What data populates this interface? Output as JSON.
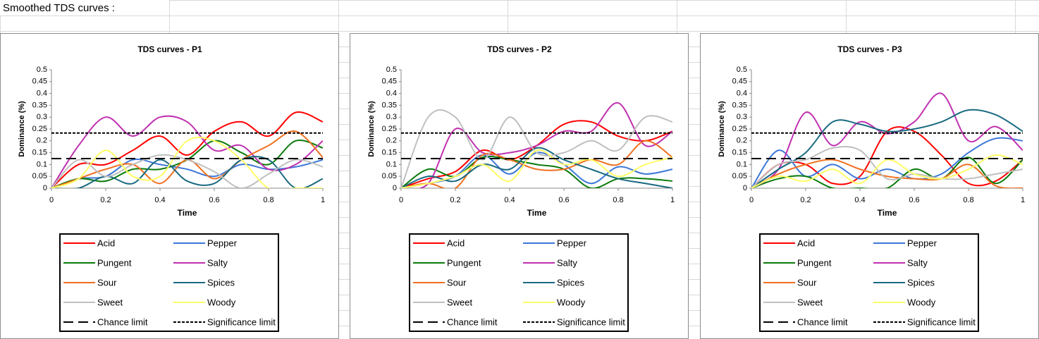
{
  "sheet_title": "Smoothed TDS curves :",
  "chart_data": [
    {
      "type": "line",
      "title": "TDS curves - P1",
      "x_label": "Time",
      "y_label": "Dominance (%)",
      "x": [
        0,
        0.1,
        0.2,
        0.3,
        0.4,
        0.5,
        0.6,
        0.7,
        0.8,
        0.9,
        1
      ],
      "xlim": [
        0,
        1
      ],
      "ylim": [
        0,
        0.5
      ],
      "xticks": [
        0,
        0.2,
        0.4,
        0.6,
        0.8,
        1
      ],
      "yticks": [
        0,
        0.05,
        0.1,
        0.15,
        0.2,
        0.25,
        0.3,
        0.35,
        0.4,
        0.45,
        0.5
      ],
      "series": [
        {
          "name": "Acid",
          "color": "#ff0000",
          "values": [
            0,
            0.1,
            0.1,
            0.16,
            0.22,
            0.14,
            0.24,
            0.28,
            0.22,
            0.32,
            0.28
          ]
        },
        {
          "name": "Pepper",
          "color": "#3c78d8",
          "values": [
            0,
            0.04,
            0.05,
            0.12,
            0.1,
            0.08,
            0.05,
            0.1,
            0.08,
            0.09,
            0.12
          ]
        },
        {
          "name": "Pungent",
          "color": "#0a7a0a",
          "values": [
            0,
            0.04,
            0.03,
            0.08,
            0.08,
            0.12,
            0.2,
            0.15,
            0.1,
            0.2,
            0.17
          ]
        },
        {
          "name": "Salty",
          "color": "#c030b0",
          "values": [
            0,
            0.18,
            0.3,
            0.22,
            0.3,
            0.28,
            0.16,
            0.18,
            0.08,
            0.1,
            0.2
          ]
        },
        {
          "name": "Sour",
          "color": "#f07020",
          "values": [
            0,
            0.04,
            0.08,
            0.1,
            0.02,
            0.12,
            0.04,
            0.12,
            0.18,
            0.24,
            0.13
          ]
        },
        {
          "name": "Spices",
          "color": "#1a6a80",
          "values": [
            0,
            0,
            0.05,
            0.02,
            0.12,
            0.03,
            0.02,
            0.12,
            0.12,
            0,
            0.04
          ]
        },
        {
          "name": "Sweet",
          "color": "#bfbfbf",
          "values": [
            0,
            0.12,
            0.05,
            0.1,
            0.14,
            0.12,
            0.07,
            0,
            0.06,
            0.12,
            0.09
          ]
        },
        {
          "name": "Woody",
          "color": "#ffff66",
          "values": [
            0,
            0.04,
            0.16,
            0.05,
            0.05,
            0.2,
            0.2,
            0.12,
            0,
            0,
            0
          ]
        }
      ],
      "reference_lines": [
        {
          "name": "Chance limit",
          "value": 0.125,
          "dash": "long"
        },
        {
          "name": "Significance limit",
          "value": 0.233,
          "dash": "short"
        }
      ]
    },
    {
      "type": "line",
      "title": "TDS curves - P2",
      "x_label": "Time",
      "y_label": "Dominance (%)",
      "x": [
        0,
        0.1,
        0.2,
        0.3,
        0.4,
        0.5,
        0.6,
        0.7,
        0.8,
        0.9,
        1
      ],
      "xlim": [
        0,
        1
      ],
      "ylim": [
        0,
        0.5
      ],
      "xticks": [
        0,
        0.2,
        0.4,
        0.6,
        0.8,
        1
      ],
      "yticks": [
        0,
        0.05,
        0.1,
        0.15,
        0.2,
        0.25,
        0.3,
        0.35,
        0.4,
        0.45,
        0.5
      ],
      "series": [
        {
          "name": "Acid",
          "color": "#ff0000",
          "values": [
            0,
            0.04,
            0.07,
            0.16,
            0.12,
            0.18,
            0.27,
            0.28,
            0.22,
            0.2,
            0.24
          ]
        },
        {
          "name": "Pepper",
          "color": "#3c78d8",
          "values": [
            0,
            0.02,
            0.05,
            0.14,
            0.06,
            0.15,
            0.1,
            0.02,
            0.09,
            0.06,
            0.08
          ]
        },
        {
          "name": "Pungent",
          "color": "#0a7a0a",
          "values": [
            0,
            0.08,
            0.05,
            0.13,
            0.12,
            0.1,
            0.08,
            0,
            0.04,
            0.04,
            0.03
          ]
        },
        {
          "name": "Salty",
          "color": "#c030b0",
          "values": [
            0,
            0.02,
            0.25,
            0.15,
            0.15,
            0.18,
            0.24,
            0.24,
            0.36,
            0.18,
            0.24
          ]
        },
        {
          "name": "Sour",
          "color": "#f07020",
          "values": [
            0,
            0.02,
            0,
            0.14,
            0.12,
            0.08,
            0.08,
            0.12,
            0.1,
            0.2,
            0.13
          ]
        },
        {
          "name": "Spices",
          "color": "#1a6a80",
          "values": [
            0,
            0.05,
            0.03,
            0.1,
            0.08,
            0.17,
            0.12,
            0.08,
            0.04,
            0.02,
            0
          ]
        },
        {
          "name": "Sweet",
          "color": "#bfbfbf",
          "values": [
            0,
            0.3,
            0.3,
            0.12,
            0.3,
            0.15,
            0.15,
            0.2,
            0.16,
            0.3,
            0.28
          ]
        },
        {
          "name": "Woody",
          "color": "#ffff66",
          "values": [
            0,
            0.02,
            0.05,
            0.1,
            0.03,
            0.16,
            0.1,
            0.12,
            0.05,
            0.1,
            0.13
          ]
        }
      ],
      "reference_lines": [
        {
          "name": "Chance limit",
          "value": 0.125,
          "dash": "long"
        },
        {
          "name": "Significance limit",
          "value": 0.233,
          "dash": "short"
        }
      ]
    },
    {
      "type": "line",
      "title": "TDS curves - P3",
      "x_label": "Time",
      "y_label": "Dominance (%)",
      "x": [
        0,
        0.1,
        0.2,
        0.3,
        0.4,
        0.5,
        0.6,
        0.7,
        0.8,
        0.9,
        1
      ],
      "xlim": [
        0,
        1
      ],
      "ylim": [
        0,
        0.5
      ],
      "xticks": [
        0,
        0.2,
        0.4,
        0.6,
        0.8,
        1
      ],
      "yticks": [
        0,
        0.05,
        0.1,
        0.15,
        0.2,
        0.25,
        0.3,
        0.35,
        0.4,
        0.45,
        0.5
      ],
      "series": [
        {
          "name": "Acid",
          "color": "#ff0000",
          "values": [
            0,
            0.1,
            0.1,
            0.02,
            0.05,
            0.24,
            0.24,
            0.14,
            0.02,
            0.03,
            0.12
          ]
        },
        {
          "name": "Pepper",
          "color": "#3c78d8",
          "values": [
            0,
            0.16,
            0.05,
            0.1,
            0.04,
            0.08,
            0.04,
            0.06,
            0.15,
            0.21,
            0.2
          ]
        },
        {
          "name": "Pungent",
          "color": "#0a7a0a",
          "values": [
            0,
            0.04,
            0.05,
            0,
            0,
            0,
            0.08,
            0.04,
            0.13,
            0.02,
            0.12
          ]
        },
        {
          "name": "Salty",
          "color": "#c030b0",
          "values": [
            0,
            0.08,
            0.32,
            0.18,
            0.28,
            0.23,
            0.28,
            0.4,
            0.2,
            0.26,
            0.16
          ]
        },
        {
          "name": "Sour",
          "color": "#f07020",
          "values": [
            0,
            0.06,
            0.1,
            0.12,
            0.08,
            0.05,
            0.04,
            0.04,
            0.1,
            0.01,
            0
          ]
        },
        {
          "name": "Spices",
          "color": "#1a6a80",
          "values": [
            0,
            0.08,
            0.15,
            0.28,
            0.27,
            0.24,
            0.25,
            0.28,
            0.33,
            0.31,
            0.24
          ]
        },
        {
          "name": "Sweet",
          "color": "#bfbfbf",
          "values": [
            0,
            0.1,
            0.12,
            0.17,
            0.16,
            0.04,
            0.06,
            0.04,
            0.04,
            0.06,
            0.08
          ]
        },
        {
          "name": "Woody",
          "color": "#ffff66",
          "values": [
            0,
            0.05,
            0.03,
            0.08,
            0.02,
            0.12,
            0.06,
            0.04,
            0.08,
            0.14,
            0.1
          ]
        }
      ],
      "reference_lines": [
        {
          "name": "Chance limit",
          "value": 0.125,
          "dash": "long"
        },
        {
          "name": "Significance limit",
          "value": 0.233,
          "dash": "short"
        }
      ]
    }
  ]
}
